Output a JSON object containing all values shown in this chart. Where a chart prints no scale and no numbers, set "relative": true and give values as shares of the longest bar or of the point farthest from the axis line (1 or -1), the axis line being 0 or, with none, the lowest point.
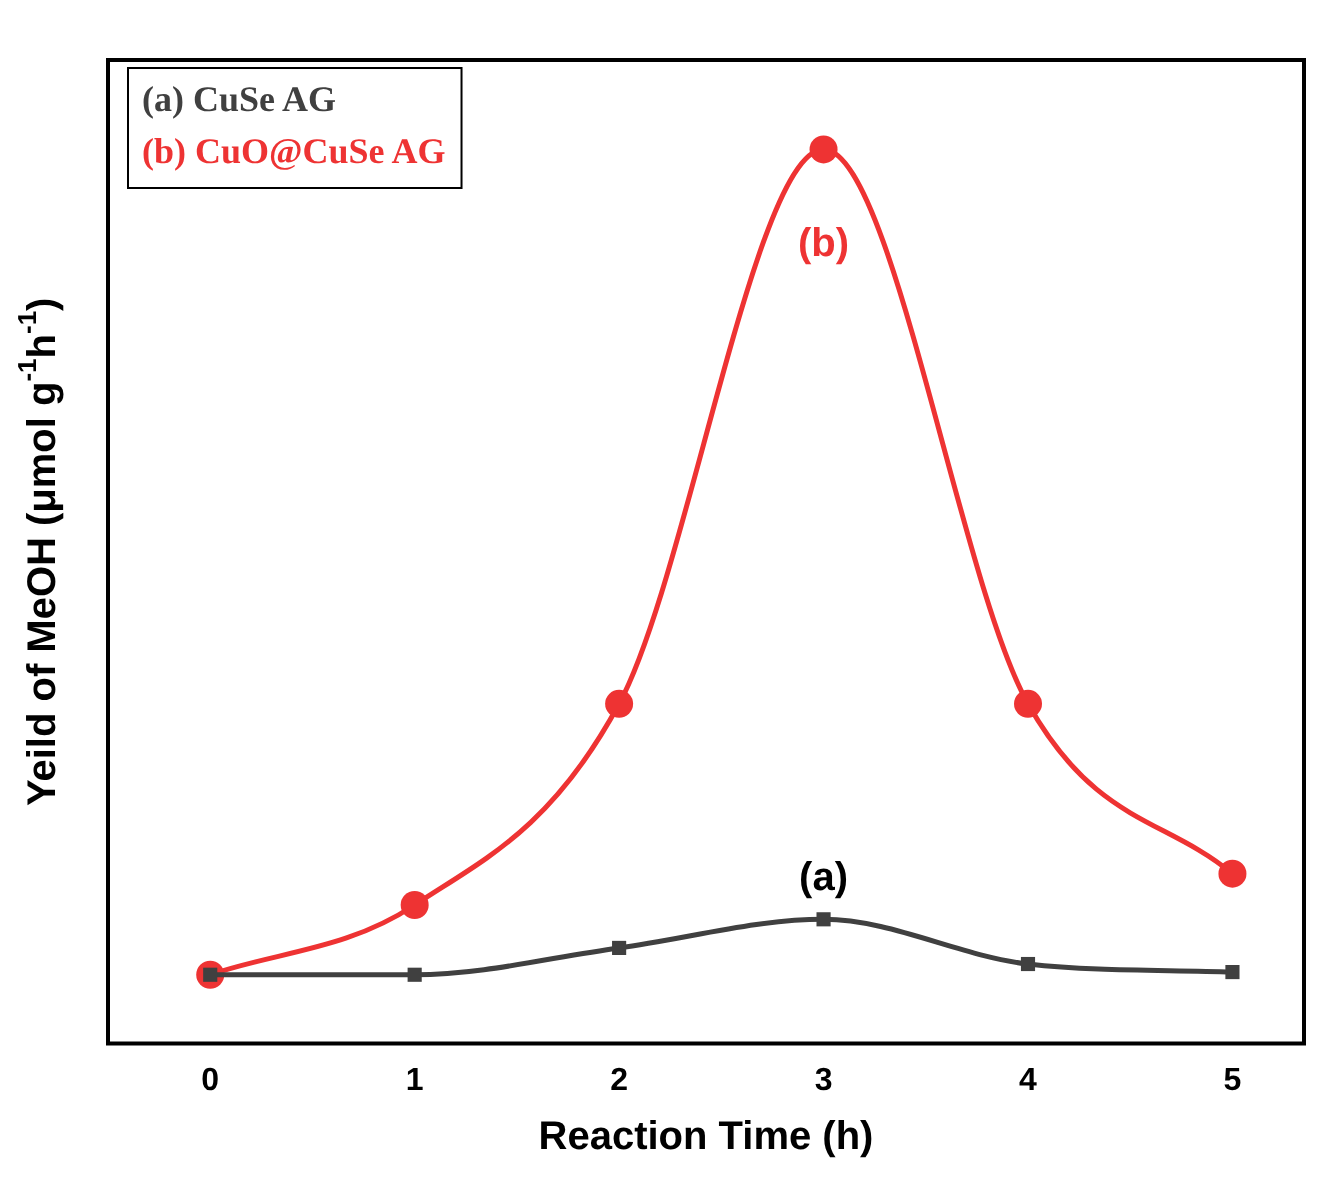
{
  "chart_data": {
    "type": "line",
    "relative": true,
    "xlabel": "Reaction Time (h)",
    "ylabel": "Yeild of MeOH (μmol g$^{-1}$h$^{-1}$)",
    "x": [
      0,
      1,
      2,
      3,
      4,
      5
    ],
    "xlim": [
      -0.5,
      5.35
    ],
    "xticks": [
      0,
      1,
      2,
      3,
      4,
      5
    ],
    "series": [
      {
        "name": "(a) CuSe AG",
        "color": "#404040",
        "marker": "square",
        "values": [
          0.077,
          0.077,
          0.107,
          0.139,
          0.089,
          0.08
        ]
      },
      {
        "name": "(b) CuO@CuSe AG",
        "color": "#ee3333",
        "marker": "circle",
        "values": [
          0.077,
          0.155,
          0.38,
          1,
          0.38,
          0.19
        ]
      }
    ],
    "annotations": [
      {
        "text": "(b)",
        "x": 3,
        "y": 1
      },
      {
        "text": "(a)",
        "x": 3,
        "y": 0.139
      }
    ],
    "legend": "top left",
    "grid": false
  }
}
